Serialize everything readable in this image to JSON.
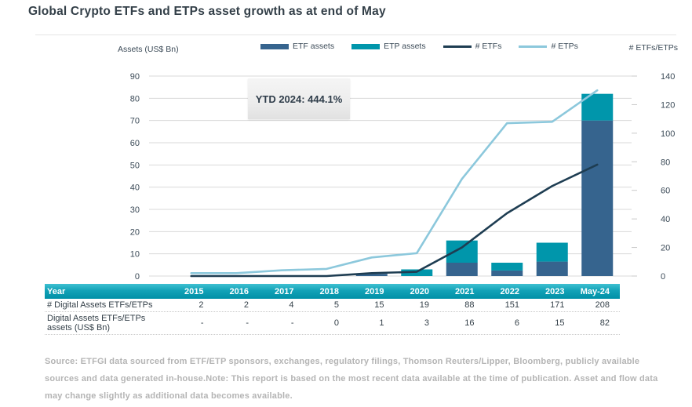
{
  "title": "Global Crypto ETFs and ETPs asset growth as at end of May",
  "chart": {
    "left_axis_title": "Assets (US$ Bn)",
    "right_axis_title": "# ETFs/ETPs",
    "annotation": "YTD 2024: 444.1%",
    "colors": {
      "etf_bar": "#36648e",
      "etp_bar": "#0096ab",
      "etfs_line": "#1e3d52",
      "etps_line": "#8cc8dc",
      "grid": "#d9d9d9",
      "tick_text": "#3b4a57"
    },
    "legend": [
      {
        "label": "ETF assets",
        "type": "bar",
        "color": "#36648e"
      },
      {
        "label": "ETP assets",
        "type": "bar",
        "color": "#0096ab"
      },
      {
        "label": "# ETFs",
        "type": "line",
        "color": "#1e3d52"
      },
      {
        "label": "# ETPs",
        "type": "line",
        "color": "#8cc8dc"
      }
    ]
  },
  "chart_data": {
    "type": "combo: stacked bar + line",
    "title": "Global Crypto ETFs and ETPs asset growth as at end of May",
    "categories": [
      "2015",
      "2016",
      "2017",
      "2018",
      "2019",
      "2020",
      "2021",
      "2022",
      "2023",
      "May-24"
    ],
    "bar_series": [
      {
        "name": "ETF assets",
        "axis": "left",
        "values": [
          0,
          0,
          0,
          0,
          1,
          0,
          6,
          2.5,
          6.5,
          70
        ]
      },
      {
        "name": "ETP assets",
        "axis": "left",
        "stacked_on": "ETF assets",
        "values": [
          0,
          0,
          0,
          0,
          0,
          3,
          10,
          3.5,
          8.5,
          12
        ]
      }
    ],
    "bar_totals_from_table": [
      null,
      null,
      null,
      0,
      1,
      3,
      16,
      6,
      15,
      82
    ],
    "line_series": [
      {
        "name": "# ETFs",
        "axis": "right",
        "values": [
          0,
          0,
          0,
          0,
          2,
          3,
          20,
          44,
          63,
          78
        ]
      },
      {
        "name": "# ETPs",
        "axis": "right",
        "values": [
          2,
          2,
          4,
          5,
          13,
          16,
          68,
          107,
          108,
          130
        ]
      }
    ],
    "line_totals_from_table": [
      2,
      2,
      4,
      5,
      15,
      19,
      88,
      151,
      171,
      208
    ],
    "left_axis": {
      "title": "Assets (US$ Bn)",
      "min": 0,
      "max": 90,
      "step": 10
    },
    "right_axis": {
      "title": "# ETFs/ETPs",
      "min": 0,
      "max": 140,
      "step": 20
    },
    "grid": "horizontal, light gray",
    "legend_position": "top",
    "annotation": {
      "text": "YTD 2024: 444.1%",
      "near": "upper left of plot"
    }
  },
  "table": {
    "header": [
      "Year",
      "2015",
      "2016",
      "2017",
      "2018",
      "2019",
      "2020",
      "2021",
      "2022",
      "2023",
      "May-24"
    ],
    "rows": [
      {
        "label": "# Digital Assets ETFs/ETPs",
        "values": [
          "2",
          "2",
          "4",
          "5",
          "15",
          "19",
          "88",
          "151",
          "171",
          "208"
        ]
      },
      {
        "label": "Digital Assets ETFs/ETPs assets (US$ Bn)",
        "values": [
          "-",
          "-",
          "-",
          "0",
          "1",
          "3",
          "16",
          "6",
          "15",
          "82"
        ]
      }
    ]
  },
  "footnote": "Source: ETFGI data sourced from ETF/ETP sponsors, exchanges, regulatory filings, Thomson Reuters/Lipper, Bloomberg, publicly available sources and data generated in-house.Note: This report is based on the most recent data available at the time of publication. Asset and flow data may change slightly as additional data becomes available."
}
